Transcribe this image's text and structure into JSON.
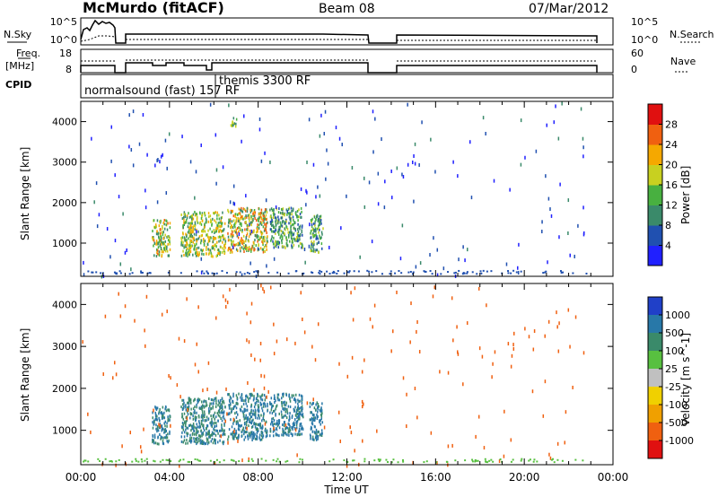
{
  "header": {
    "station": "McMurdo (fitACF)",
    "beam": "Beam 08",
    "date": "07/Mar/2012"
  },
  "side_labels": {
    "nsky": "N.Sky",
    "freq_line1": "Freq.",
    "freq_line2": "[MHz]",
    "cpid": "CPID",
    "nsearch": "N.Search",
    "nave": "Nave"
  },
  "noise_panel": {
    "left_ticks": [
      "10^5",
      "10^0"
    ],
    "right_ticks": [
      "10^5",
      "10^0"
    ]
  },
  "freq_panel": {
    "left_ticks": [
      "18",
      "8"
    ],
    "right_ticks": [
      "60",
      "0"
    ]
  },
  "cpid_labels": {
    "normalsound": "normalsound (fast) 157 RF",
    "themis": "themis 3300 RF"
  },
  "xaxis": {
    "label": "Time UT",
    "ticks": [
      "00:00",
      "04:00",
      "08:00",
      "12:00",
      "16:00",
      "20:00",
      "00:00"
    ]
  },
  "yaxis": {
    "label": "Slant Range [km]",
    "ticks": [
      "1000",
      "2000",
      "3000",
      "4000"
    ]
  },
  "power_colorbar": {
    "label": "Power [dB]",
    "ticks": [
      "4",
      "8",
      "12",
      "16",
      "20",
      "24",
      "28"
    ],
    "colors": [
      "#2020ff",
      "#2050b0",
      "#3a8a6a",
      "#48b040",
      "#c8d020",
      "#f5a800",
      "#f06010",
      "#e01010"
    ]
  },
  "velocity_colorbar": {
    "label": "Velocity [m s^-1]",
    "ticks": [
      "1000",
      "500",
      "100",
      "25",
      "-25",
      "-100",
      "-500",
      "-1000"
    ],
    "colors": [
      "#2040c8",
      "#2878a8",
      "#3a8a6a",
      "#58c040",
      "#c0c0c0",
      "#f0d000",
      "#f0a000",
      "#f06010",
      "#e01010"
    ]
  },
  "chart_data": [
    {
      "type": "heatmap",
      "title": "Beam 08",
      "xlabel": "Time UT",
      "ylabel": "Slant Range [km]",
      "xlim_hours": [
        0,
        24
      ],
      "ylim_km": [
        180,
        4500
      ],
      "colorbar": "Power [dB]",
      "colorbar_range": [
        0,
        30
      ],
      "data_extent_hours": [
        0,
        22.8
      ],
      "scatter_features": [
        {
          "time_hours": [
            3.2,
            4.0
          ],
          "range_km": [
            700,
            1600
          ],
          "power_db": [
            8,
            26
          ]
        },
        {
          "time_hours": [
            4.5,
            6.5
          ],
          "range_km": [
            700,
            1800
          ],
          "power_db": [
            8,
            24
          ]
        },
        {
          "time_hours": [
            6.6,
            8.4
          ],
          "range_km": [
            800,
            1900
          ],
          "power_db": [
            8,
            28
          ]
        },
        {
          "time_hours": [
            8.5,
            10.0
          ],
          "range_km": [
            900,
            1900
          ],
          "power_db": [
            6,
            18
          ]
        },
        {
          "time_hours": [
            10.3,
            10.9
          ],
          "range_km": [
            800,
            1700
          ],
          "power_db": [
            6,
            18
          ]
        },
        {
          "time_hours": [
            6.7,
            7.0
          ],
          "range_km": [
            3900,
            4150
          ],
          "power_db": [
            8,
            20
          ]
        }
      ]
    },
    {
      "type": "heatmap",
      "title": "Beam 08",
      "xlabel": "Time UT",
      "ylabel": "Slant Range [km]",
      "xlim_hours": [
        0,
        24
      ],
      "ylim_km": [
        180,
        4500
      ],
      "colorbar": "Velocity [m s^-1]",
      "colorbar_range": [
        -1000,
        1000
      ],
      "data_extent_hours": [
        0,
        22.8
      ],
      "scatter_features": [
        {
          "time_hours": [
            3.2,
            4.0
          ],
          "range_km": [
            700,
            1600
          ],
          "velocity_ms": [
            200,
            1000
          ]
        },
        {
          "time_hours": [
            4.5,
            6.5
          ],
          "range_km": [
            700,
            1800
          ],
          "velocity_ms": [
            100,
            800
          ]
        },
        {
          "time_hours": [
            6.6,
            8.4
          ],
          "range_km": [
            800,
            1900
          ],
          "velocity_ms": [
            300,
            1000
          ]
        },
        {
          "time_hours": [
            8.5,
            10.0
          ],
          "range_km": [
            900,
            1900
          ],
          "velocity_ms": [
            300,
            1000
          ]
        },
        {
          "time_hours": [
            10.3,
            10.9
          ],
          "range_km": [
            800,
            1700
          ],
          "velocity_ms": [
            300,
            900
          ]
        }
      ]
    }
  ]
}
